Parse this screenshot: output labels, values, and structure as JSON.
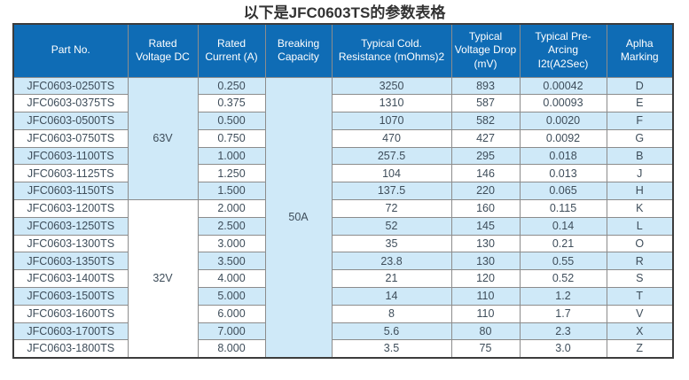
{
  "page": {
    "title": "以下是JFC0603TS的参数表格"
  },
  "colors": {
    "header_bg": "#0f6cb5",
    "header_text": "#ffffff",
    "row_alt_bg": "#cfe9f8",
    "row_bg": "#ffffff",
    "cell_text": "#3e4d5a",
    "inner_border": "#8c8c8c",
    "outer_border": "#3c3c3c",
    "title_color": "#333333"
  },
  "table": {
    "columns": [
      "Part No.",
      "Rated Voltage DC",
      "Rated Current (A)",
      "Breaking Capacity",
      "Typical Cold. Resistance (mOhms)2",
      "Typical Voltage Drop (mV)",
      "Typical Pre-Arcing I2t(A2Sec)",
      "Aplha Marking"
    ],
    "voltage_groups": [
      {
        "label": "63V",
        "rows": 7
      },
      {
        "label": "32V",
        "rows": 9
      }
    ],
    "breaking_capacity": "50A",
    "rows": [
      {
        "part_no": "JFC0603-0250TS",
        "current": "0.250",
        "resistance": "3250",
        "voltage_drop": "893",
        "pre_arcing": "0.00042",
        "marking": "D"
      },
      {
        "part_no": "JFC0603-0375TS",
        "current": "0.375",
        "resistance": "1310",
        "voltage_drop": "587",
        "pre_arcing": "0.00093",
        "marking": "E"
      },
      {
        "part_no": "JFC0603-0500TS",
        "current": "0.500",
        "resistance": "1070",
        "voltage_drop": "582",
        "pre_arcing": "0.0020",
        "marking": "F"
      },
      {
        "part_no": "JFC0603-0750TS",
        "current": "0.750",
        "resistance": "470",
        "voltage_drop": "427",
        "pre_arcing": "0.0092",
        "marking": "G"
      },
      {
        "part_no": "JFC0603-1100TS",
        "current": "1.000",
        "resistance": "257.5",
        "voltage_drop": "295",
        "pre_arcing": "0.018",
        "marking": "B"
      },
      {
        "part_no": "JFC0603-1125TS",
        "current": "1.250",
        "resistance": "104",
        "voltage_drop": "146",
        "pre_arcing": "0.013",
        "marking": "J"
      },
      {
        "part_no": "JFC0603-1150TS",
        "current": "1.500",
        "resistance": "137.5",
        "voltage_drop": "220",
        "pre_arcing": "0.065",
        "marking": "H"
      },
      {
        "part_no": "JFC0603-1200TS",
        "current": "2.000",
        "resistance": "72",
        "voltage_drop": "160",
        "pre_arcing": "0.115",
        "marking": "K"
      },
      {
        "part_no": "JFC0603-1250TS",
        "current": "2.500",
        "resistance": "52",
        "voltage_drop": "145",
        "pre_arcing": "0.14",
        "marking": "L"
      },
      {
        "part_no": "JFC0603-1300TS",
        "current": "3.000",
        "resistance": "35",
        "voltage_drop": "130",
        "pre_arcing": "0.21",
        "marking": "O"
      },
      {
        "part_no": "JFC0603-1350TS",
        "current": "3.500",
        "resistance": "23.8",
        "voltage_drop": "130",
        "pre_arcing": "0.55",
        "marking": "R"
      },
      {
        "part_no": "JFC0603-1400TS",
        "current": "4.000",
        "resistance": "21",
        "voltage_drop": "120",
        "pre_arcing": "0.52",
        "marking": "S"
      },
      {
        "part_no": "JFC0603-1500TS",
        "current": "5.000",
        "resistance": "14",
        "voltage_drop": "110",
        "pre_arcing": "1.2",
        "marking": "T"
      },
      {
        "part_no": "JFC0603-1600TS",
        "current": "6.000",
        "resistance": "8",
        "voltage_drop": "110",
        "pre_arcing": "1.7",
        "marking": "V"
      },
      {
        "part_no": "JFC0603-1700TS",
        "current": "7.000",
        "resistance": "5.6",
        "voltage_drop": "80",
        "pre_arcing": "2.3",
        "marking": "X"
      },
      {
        "part_no": "JFC0603-1800TS",
        "current": "8.000",
        "resistance": "3.5",
        "voltage_drop": "75",
        "pre_arcing": "3.0",
        "marking": "Z"
      }
    ]
  }
}
